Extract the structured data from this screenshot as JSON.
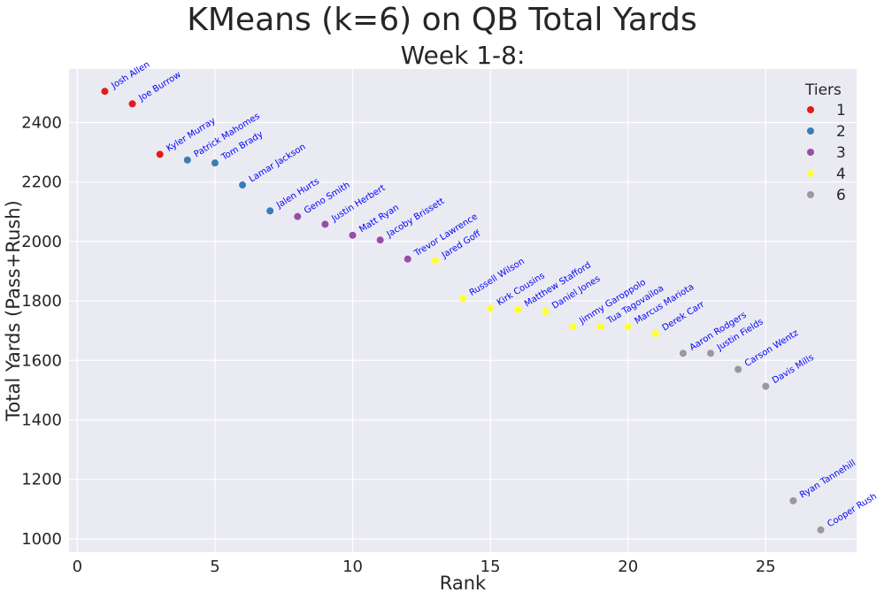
{
  "suptitle": "KMeans (k=6) on QB Total Yards",
  "chart_data": {
    "type": "scatter",
    "title": "Week 1-8:",
    "xlabel": "Rank",
    "ylabel": "Total Yards (Pass+Rush)",
    "xlim": [
      -0.3,
      28.3
    ],
    "ylim": [
      955,
      2580
    ],
    "xticks": [
      0,
      5,
      10,
      15,
      20,
      25
    ],
    "yticks": [
      1000,
      1200,
      1400,
      1600,
      1800,
      2000,
      2200,
      2400
    ],
    "grid": true,
    "legend": {
      "title": "Tiers",
      "placement": "top-right"
    },
    "tier_colors": {
      "1": "#e41a1c",
      "2": "#377eb8",
      "3": "#984ea3",
      "4": "#ffff33",
      "6": "#999999"
    },
    "label_color": "#0000ff",
    "points": [
      {
        "rank": 1,
        "yards": 2505,
        "tier": "1",
        "name": "Josh Allen"
      },
      {
        "rank": 2,
        "yards": 2463,
        "tier": "1",
        "name": "Joe Burrow"
      },
      {
        "rank": 3,
        "yards": 2293,
        "tier": "1",
        "name": "Kyler Murray"
      },
      {
        "rank": 4,
        "yards": 2274,
        "tier": "2",
        "name": "Patrick Mahomes"
      },
      {
        "rank": 5,
        "yards": 2264,
        "tier": "2",
        "name": "Tom Brady"
      },
      {
        "rank": 6,
        "yards": 2190,
        "tier": "2",
        "name": "Lamar Jackson"
      },
      {
        "rank": 7,
        "yards": 2103,
        "tier": "2",
        "name": "Jalen Hurts"
      },
      {
        "rank": 8,
        "yards": 2084,
        "tier": "3",
        "name": "Geno Smith"
      },
      {
        "rank": 9,
        "yards": 2058,
        "tier": "3",
        "name": "Justin Herbert"
      },
      {
        "rank": 10,
        "yards": 2021,
        "tier": "3",
        "name": "Matt Ryan"
      },
      {
        "rank": 11,
        "yards": 2005,
        "tier": "3",
        "name": "Jacoby Brissett"
      },
      {
        "rank": 12,
        "yards": 1941,
        "tier": "3",
        "name": "Trevor Lawrence"
      },
      {
        "rank": 13,
        "yards": 1935,
        "tier": "4",
        "name": "Jared Goff"
      },
      {
        "rank": 14,
        "yards": 1808,
        "tier": "4",
        "name": "Russell Wilson"
      },
      {
        "rank": 15,
        "yards": 1775,
        "tier": "4",
        "name": "Kirk Cousins"
      },
      {
        "rank": 16,
        "yards": 1771,
        "tier": "4",
        "name": "Matthew Stafford"
      },
      {
        "rank": 17,
        "yards": 1764,
        "tier": "4",
        "name": "Daniel Jones"
      },
      {
        "rank": 18,
        "yards": 1714,
        "tier": "4",
        "name": "Jimmy Garoppolo"
      },
      {
        "rank": 19,
        "yards": 1714,
        "tier": "4",
        "name": "Tua Tagovailoa"
      },
      {
        "rank": 20,
        "yards": 1713,
        "tier": "4",
        "name": "Marcus Mariota"
      },
      {
        "rank": 21,
        "yards": 1690,
        "tier": "4",
        "name": "Derek Carr"
      },
      {
        "rank": 22,
        "yards": 1624,
        "tier": "6",
        "name": "Aaron Rodgers"
      },
      {
        "rank": 23,
        "yards": 1624,
        "tier": "6",
        "name": "Justin Fields"
      },
      {
        "rank": 24,
        "yards": 1570,
        "tier": "6",
        "name": "Carson Wentz"
      },
      {
        "rank": 25,
        "yards": 1513,
        "tier": "6",
        "name": "Davis Mills"
      },
      {
        "rank": 26,
        "yards": 1128,
        "tier": "6",
        "name": "Ryan Tannehill"
      },
      {
        "rank": 27,
        "yards": 1030,
        "tier": "6",
        "name": "Cooper Rush"
      }
    ]
  }
}
